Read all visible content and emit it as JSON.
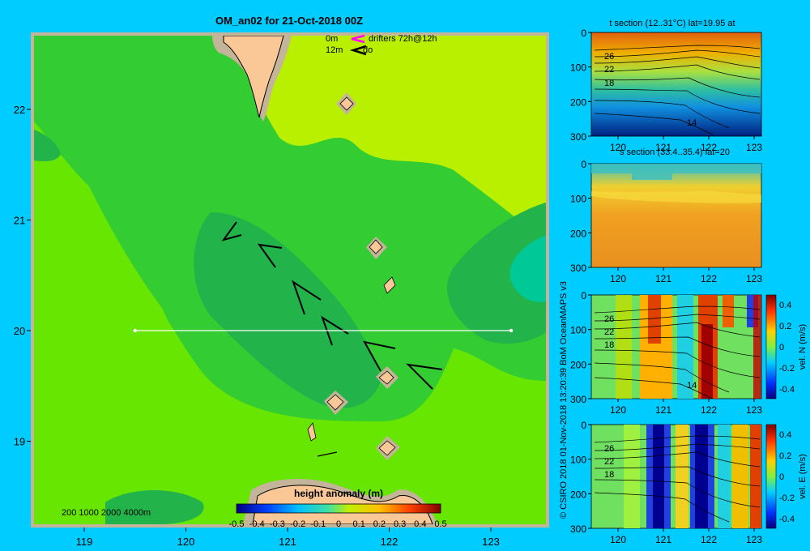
{
  "title": "OM_an02 for 21-Oct-2018 00Z",
  "colors": {
    "background": "#00ccff",
    "land": "#f9c896",
    "shelf": "#c4b49a",
    "map_mid": "#33cc33",
    "map_light": "#66e600",
    "map_yellow": "#b8f000",
    "map_dark": "#22b34a",
    "map_teal": "#00c896"
  },
  "drifters": {
    "line1_depth": "0m",
    "line1_text": "drifters 72h@12h",
    "line2_depth": "12m",
    "line2_text": "do"
  },
  "map": {
    "x_ticks": [
      {
        "value": 119,
        "label": "119"
      },
      {
        "value": 120,
        "label": "120"
      },
      {
        "value": 121,
        "label": "121"
      },
      {
        "value": 122,
        "label": "122"
      },
      {
        "value": 123,
        "label": "123"
      }
    ],
    "y_ticks": [
      {
        "value": 22,
        "label": "22"
      },
      {
        "value": 21,
        "label": "21"
      },
      {
        "value": 20,
        "label": "20"
      },
      {
        "value": 19,
        "label": "19"
      }
    ],
    "section_lat": 20,
    "section_lon": [
      119.5,
      123.2
    ],
    "isobath_legend": "200  1000  2000  4000m"
  },
  "colorbar": {
    "title": "height anomaly  (m)",
    "labels": [
      "-0.5",
      "-0.4",
      "-0.3",
      "-0.2",
      "-0.1",
      "0",
      "0.1",
      "0.2",
      "0.3",
      "0.4",
      "0.5"
    ]
  },
  "panels": [
    {
      "title": "t section (12..31°C) lat=19.95 at"
    },
    {
      "title": "s section (33.4..35.4) lat=20"
    },
    {
      "colorbar_label": "vel. N (m/s)"
    },
    {
      "colorbar_label": "vel. E (m/s)"
    }
  ],
  "panel_axes": {
    "x_labels": [
      "120",
      "121",
      "122",
      "123"
    ],
    "y_labels": [
      "0",
      "100",
      "200",
      "300"
    ],
    "isotherm_labels": [
      "26",
      "22",
      "18",
      "14"
    ]
  },
  "vel_colorbar_labels": [
    "0.4",
    "0.2",
    "0",
    "-0.2",
    "-0.4"
  ],
  "credit": "© CSIRO 2018   01-Nov-2018 13:20:39 BoM OceanMAPS v3"
}
